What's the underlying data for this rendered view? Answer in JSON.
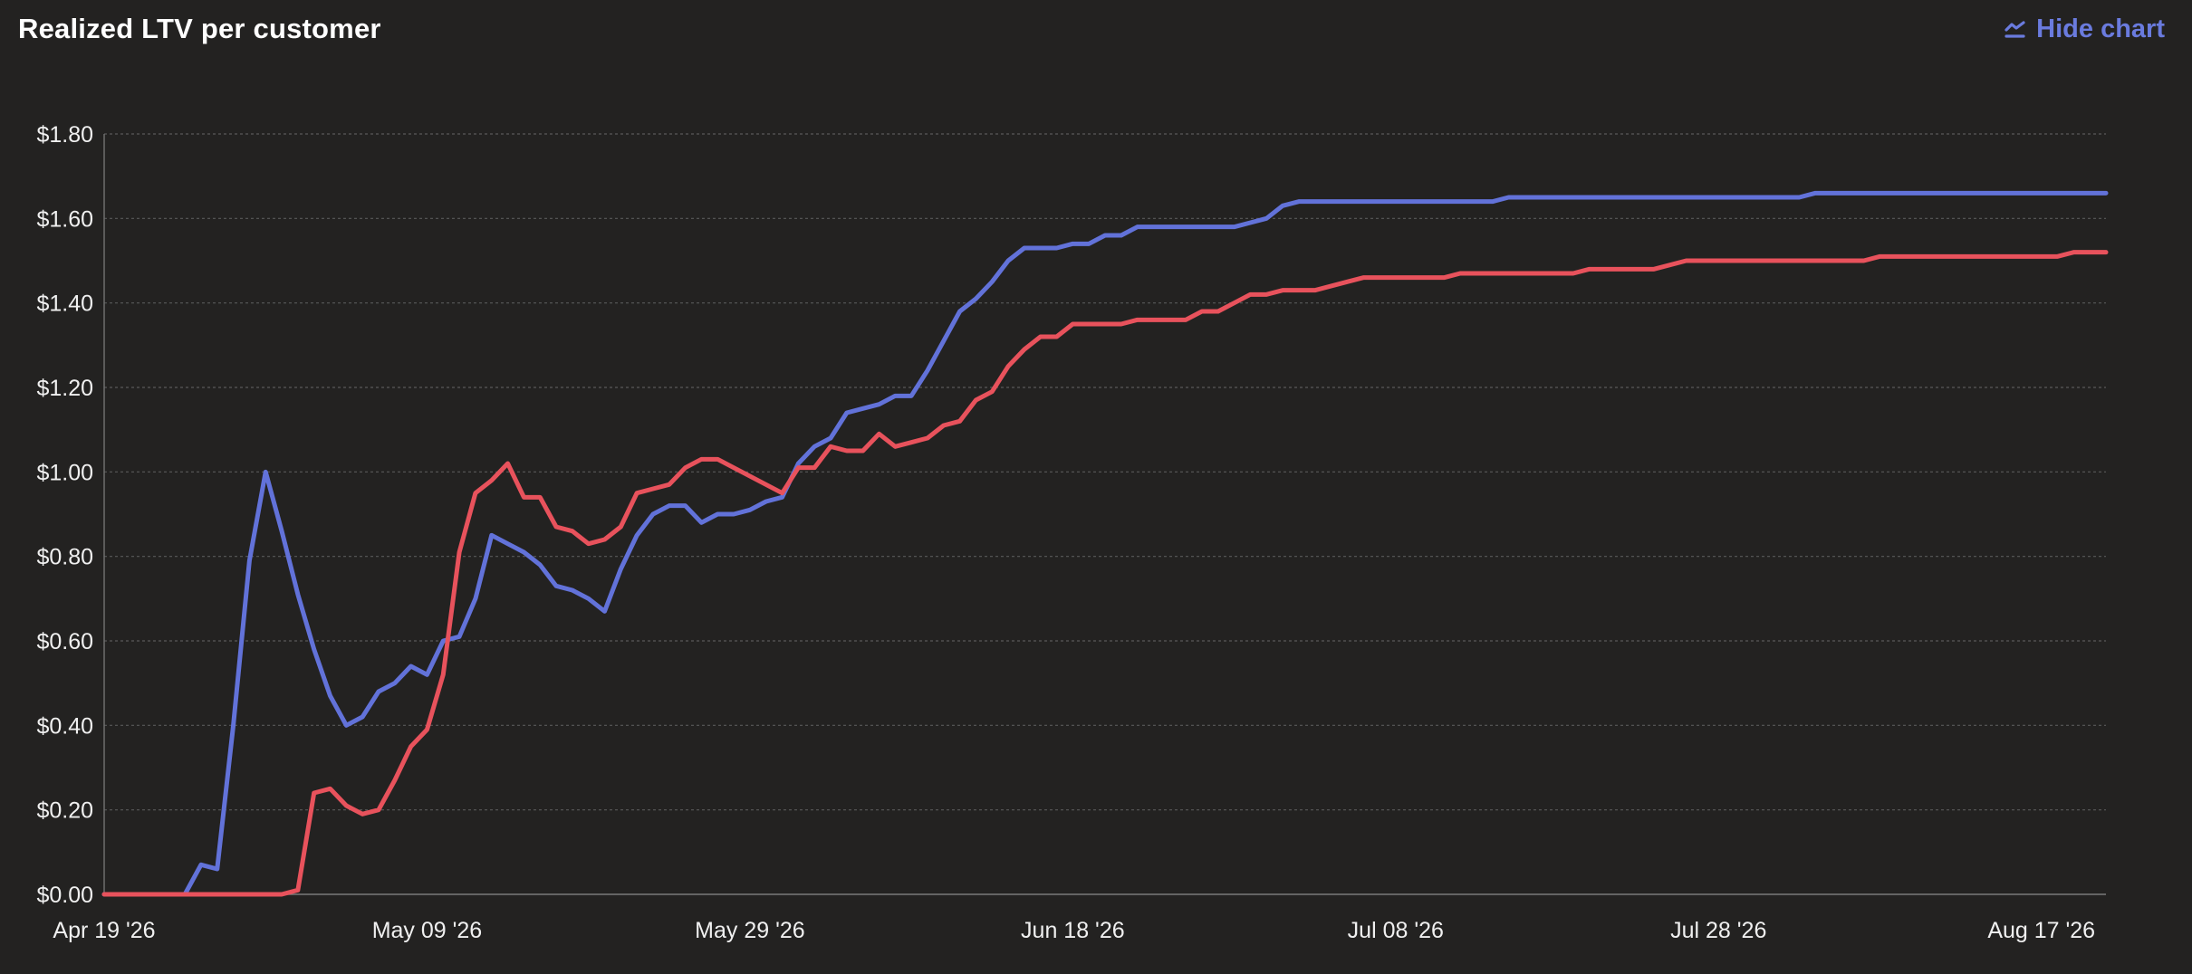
{
  "header": {
    "title": "Realized LTV per customer",
    "hide_chart_label": "Hide chart",
    "hide_chart_icon": "line-chart-icon"
  },
  "colors": {
    "background": "#232221",
    "series_blue": "#6272d9",
    "series_red": "#e8525c",
    "accent": "#6a7bde",
    "grid": "#5a5a5a"
  },
  "chart_data": {
    "type": "line",
    "title": "Realized LTV per customer",
    "xlabel": "",
    "ylabel": "",
    "x_start": "2026-04-19",
    "x_end": "2026-08-21",
    "x_tick_labels": [
      "Apr 19 '26",
      "May 09 '26",
      "May 29 '26",
      "Jun 18 '26",
      "Jul 08 '26",
      "Jul 28 '26",
      "Aug 17 '26"
    ],
    "y_tick_labels": [
      "$0.00",
      "$0.20",
      "$0.40",
      "$0.60",
      "$0.80",
      "$1.00",
      "$1.20",
      "$1.40",
      "$1.60",
      "$1.80"
    ],
    "ylim": [
      0,
      1.8
    ],
    "grid": true,
    "legend": "none",
    "series": [
      {
        "color": "#6272d9",
        "points": [
          [
            "2026-04-19",
            0
          ],
          [
            "2026-04-24",
            0
          ],
          [
            "2026-04-25",
            0.07
          ],
          [
            "2026-04-26",
            0.06
          ],
          [
            "2026-04-27",
            0.4
          ],
          [
            "2026-04-28",
            0.79
          ],
          [
            "2026-04-29",
            1.0
          ],
          [
            "2026-04-30",
            0.86
          ],
          [
            "2026-05-01",
            0.71
          ],
          [
            "2026-05-02",
            0.58
          ],
          [
            "2026-05-03",
            0.47
          ],
          [
            "2026-05-04",
            0.4
          ],
          [
            "2026-05-05",
            0.42
          ],
          [
            "2026-05-06",
            0.48
          ],
          [
            "2026-05-07",
            0.5
          ],
          [
            "2026-05-08",
            0.54
          ],
          [
            "2026-05-09",
            0.52
          ],
          [
            "2026-05-10",
            0.6
          ],
          [
            "2026-05-11",
            0.61
          ],
          [
            "2026-05-12",
            0.7
          ],
          [
            "2026-05-13",
            0.85
          ],
          [
            "2026-05-14",
            0.83
          ],
          [
            "2026-05-15",
            0.81
          ],
          [
            "2026-05-16",
            0.78
          ],
          [
            "2026-05-17",
            0.73
          ],
          [
            "2026-05-18",
            0.72
          ],
          [
            "2026-05-19",
            0.7
          ],
          [
            "2026-05-20",
            0.67
          ],
          [
            "2026-05-21",
            0.77
          ],
          [
            "2026-05-22",
            0.85
          ],
          [
            "2026-05-23",
            0.9
          ],
          [
            "2026-05-24",
            0.92
          ],
          [
            "2026-05-25",
            0.92
          ],
          [
            "2026-05-26",
            0.88
          ],
          [
            "2026-05-27",
            0.9
          ],
          [
            "2026-05-28",
            0.9
          ],
          [
            "2026-05-29",
            0.91
          ],
          [
            "2026-05-30",
            0.93
          ],
          [
            "2026-05-31",
            0.94
          ],
          [
            "2026-06-01",
            1.02
          ],
          [
            "2026-06-02",
            1.06
          ],
          [
            "2026-06-03",
            1.08
          ],
          [
            "2026-06-04",
            1.14
          ],
          [
            "2026-06-05",
            1.15
          ],
          [
            "2026-06-06",
            1.16
          ],
          [
            "2026-06-07",
            1.18
          ],
          [
            "2026-06-08",
            1.18
          ],
          [
            "2026-06-09",
            1.24
          ],
          [
            "2026-06-10",
            1.31
          ],
          [
            "2026-06-11",
            1.38
          ],
          [
            "2026-06-12",
            1.41
          ],
          [
            "2026-06-13",
            1.45
          ],
          [
            "2026-06-14",
            1.5
          ],
          [
            "2026-06-15",
            1.53
          ],
          [
            "2026-06-17",
            1.53
          ],
          [
            "2026-06-18",
            1.54
          ],
          [
            "2026-06-19",
            1.54
          ],
          [
            "2026-06-20",
            1.56
          ],
          [
            "2026-06-21",
            1.56
          ],
          [
            "2026-06-22",
            1.58
          ],
          [
            "2026-06-28",
            1.58
          ],
          [
            "2026-06-29",
            1.59
          ],
          [
            "2026-06-30",
            1.6
          ],
          [
            "2026-07-01",
            1.63
          ],
          [
            "2026-07-02",
            1.64
          ],
          [
            "2026-07-14",
            1.64
          ],
          [
            "2026-07-15",
            1.65
          ],
          [
            "2026-08-02",
            1.65
          ],
          [
            "2026-08-03",
            1.66
          ],
          [
            "2026-08-21",
            1.66
          ]
        ]
      },
      {
        "color": "#e8525c",
        "points": [
          [
            "2026-04-19",
            0
          ],
          [
            "2026-04-30",
            0
          ],
          [
            "2026-05-01",
            0.01
          ],
          [
            "2026-05-02",
            0.24
          ],
          [
            "2026-05-03",
            0.25
          ],
          [
            "2026-05-04",
            0.21
          ],
          [
            "2026-05-05",
            0.19
          ],
          [
            "2026-05-06",
            0.2
          ],
          [
            "2026-05-07",
            0.27
          ],
          [
            "2026-05-08",
            0.35
          ],
          [
            "2026-05-09",
            0.39
          ],
          [
            "2026-05-10",
            0.52
          ],
          [
            "2026-05-11",
            0.81
          ],
          [
            "2026-05-12",
            0.95
          ],
          [
            "2026-05-13",
            0.98
          ],
          [
            "2026-05-14",
            1.02
          ],
          [
            "2026-05-15",
            0.94
          ],
          [
            "2026-05-16",
            0.94
          ],
          [
            "2026-05-17",
            0.87
          ],
          [
            "2026-05-18",
            0.86
          ],
          [
            "2026-05-19",
            0.83
          ],
          [
            "2026-05-20",
            0.84
          ],
          [
            "2026-05-21",
            0.87
          ],
          [
            "2026-05-22",
            0.95
          ],
          [
            "2026-05-23",
            0.96
          ],
          [
            "2026-05-24",
            0.97
          ],
          [
            "2026-05-25",
            1.01
          ],
          [
            "2026-05-26",
            1.03
          ],
          [
            "2026-05-27",
            1.03
          ],
          [
            "2026-05-28",
            1.01
          ],
          [
            "2026-05-31",
            0.95
          ],
          [
            "2026-06-01",
            1.01
          ],
          [
            "2026-06-02",
            1.01
          ],
          [
            "2026-06-03",
            1.06
          ],
          [
            "2026-06-04",
            1.05
          ],
          [
            "2026-06-05",
            1.05
          ],
          [
            "2026-06-06",
            1.09
          ],
          [
            "2026-06-07",
            1.06
          ],
          [
            "2026-06-08",
            1.07
          ],
          [
            "2026-06-09",
            1.08
          ],
          [
            "2026-06-10",
            1.11
          ],
          [
            "2026-06-11",
            1.12
          ],
          [
            "2026-06-12",
            1.17
          ],
          [
            "2026-06-13",
            1.19
          ],
          [
            "2026-06-14",
            1.25
          ],
          [
            "2026-06-15",
            1.29
          ],
          [
            "2026-06-16",
            1.32
          ],
          [
            "2026-06-17",
            1.32
          ],
          [
            "2026-06-18",
            1.35
          ],
          [
            "2026-06-21",
            1.35
          ],
          [
            "2026-06-22",
            1.36
          ],
          [
            "2026-06-25",
            1.36
          ],
          [
            "2026-06-26",
            1.38
          ],
          [
            "2026-06-27",
            1.38
          ],
          [
            "2026-06-28",
            1.4
          ],
          [
            "2026-06-29",
            1.42
          ],
          [
            "2026-06-30",
            1.42
          ],
          [
            "2026-07-01",
            1.43
          ],
          [
            "2026-07-03",
            1.43
          ],
          [
            "2026-07-05",
            1.45
          ],
          [
            "2026-07-06",
            1.46
          ],
          [
            "2026-07-11",
            1.46
          ],
          [
            "2026-07-12",
            1.47
          ],
          [
            "2026-07-19",
            1.47
          ],
          [
            "2026-07-20",
            1.48
          ],
          [
            "2026-07-24",
            1.48
          ],
          [
            "2026-07-26",
            1.5
          ],
          [
            "2026-08-06",
            1.5
          ],
          [
            "2026-08-07",
            1.51
          ],
          [
            "2026-08-18",
            1.51
          ],
          [
            "2026-08-19",
            1.52
          ],
          [
            "2026-08-21",
            1.52
          ]
        ]
      }
    ]
  }
}
